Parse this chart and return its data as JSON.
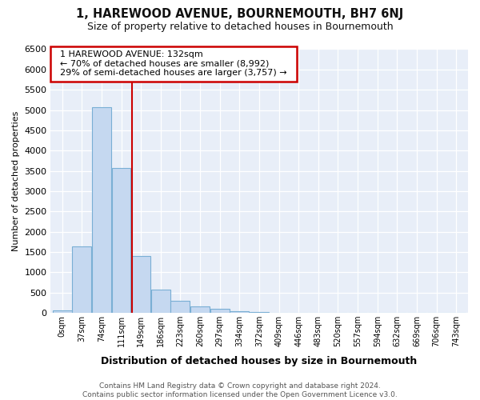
{
  "title": "1, HAREWOOD AVENUE, BOURNEMOUTH, BH7 6NJ",
  "subtitle": "Size of property relative to detached houses in Bournemouth",
  "xlabel": "Distribution of detached houses by size in Bournemouth",
  "ylabel": "Number of detached properties",
  "footer_line1": "Contains HM Land Registry data © Crown copyright and database right 2024.",
  "footer_line2": "Contains public sector information licensed under the Open Government Licence v3.0.",
  "bar_labels": [
    "0sqm",
    "37sqm",
    "74sqm",
    "111sqm",
    "149sqm",
    "186sqm",
    "223sqm",
    "260sqm",
    "297sqm",
    "334sqm",
    "372sqm",
    "409sqm",
    "446sqm",
    "483sqm",
    "520sqm",
    "557sqm",
    "594sqm",
    "632sqm",
    "669sqm",
    "706sqm",
    "743sqm"
  ],
  "bar_values": [
    70,
    1640,
    5080,
    3580,
    1400,
    580,
    300,
    155,
    100,
    50,
    15,
    10,
    5,
    0,
    0,
    0,
    0,
    0,
    0,
    0,
    0
  ],
  "bar_color": "#c5d8f0",
  "bar_edge_color": "#7aafd4",
  "ylim": [
    0,
    6500
  ],
  "yticks": [
    0,
    500,
    1000,
    1500,
    2000,
    2500,
    3000,
    3500,
    4000,
    4500,
    5000,
    5500,
    6000,
    6500
  ],
  "property_label": "1 HAREWOOD AVENUE: 132sqm",
  "annotation_line1": "← 70% of detached houses are smaller (8,992)",
  "annotation_line2": "29% of semi-detached houses are larger (3,757) →",
  "vline_color": "#cc0000",
  "vline_x": 132,
  "bin_width": 37,
  "background_color": "#ffffff",
  "plot_bg_color": "#e8eef8",
  "grid_color": "#ffffff",
  "annotation_box_edge": "#cc0000",
  "annotation_box_face": "#ffffff"
}
